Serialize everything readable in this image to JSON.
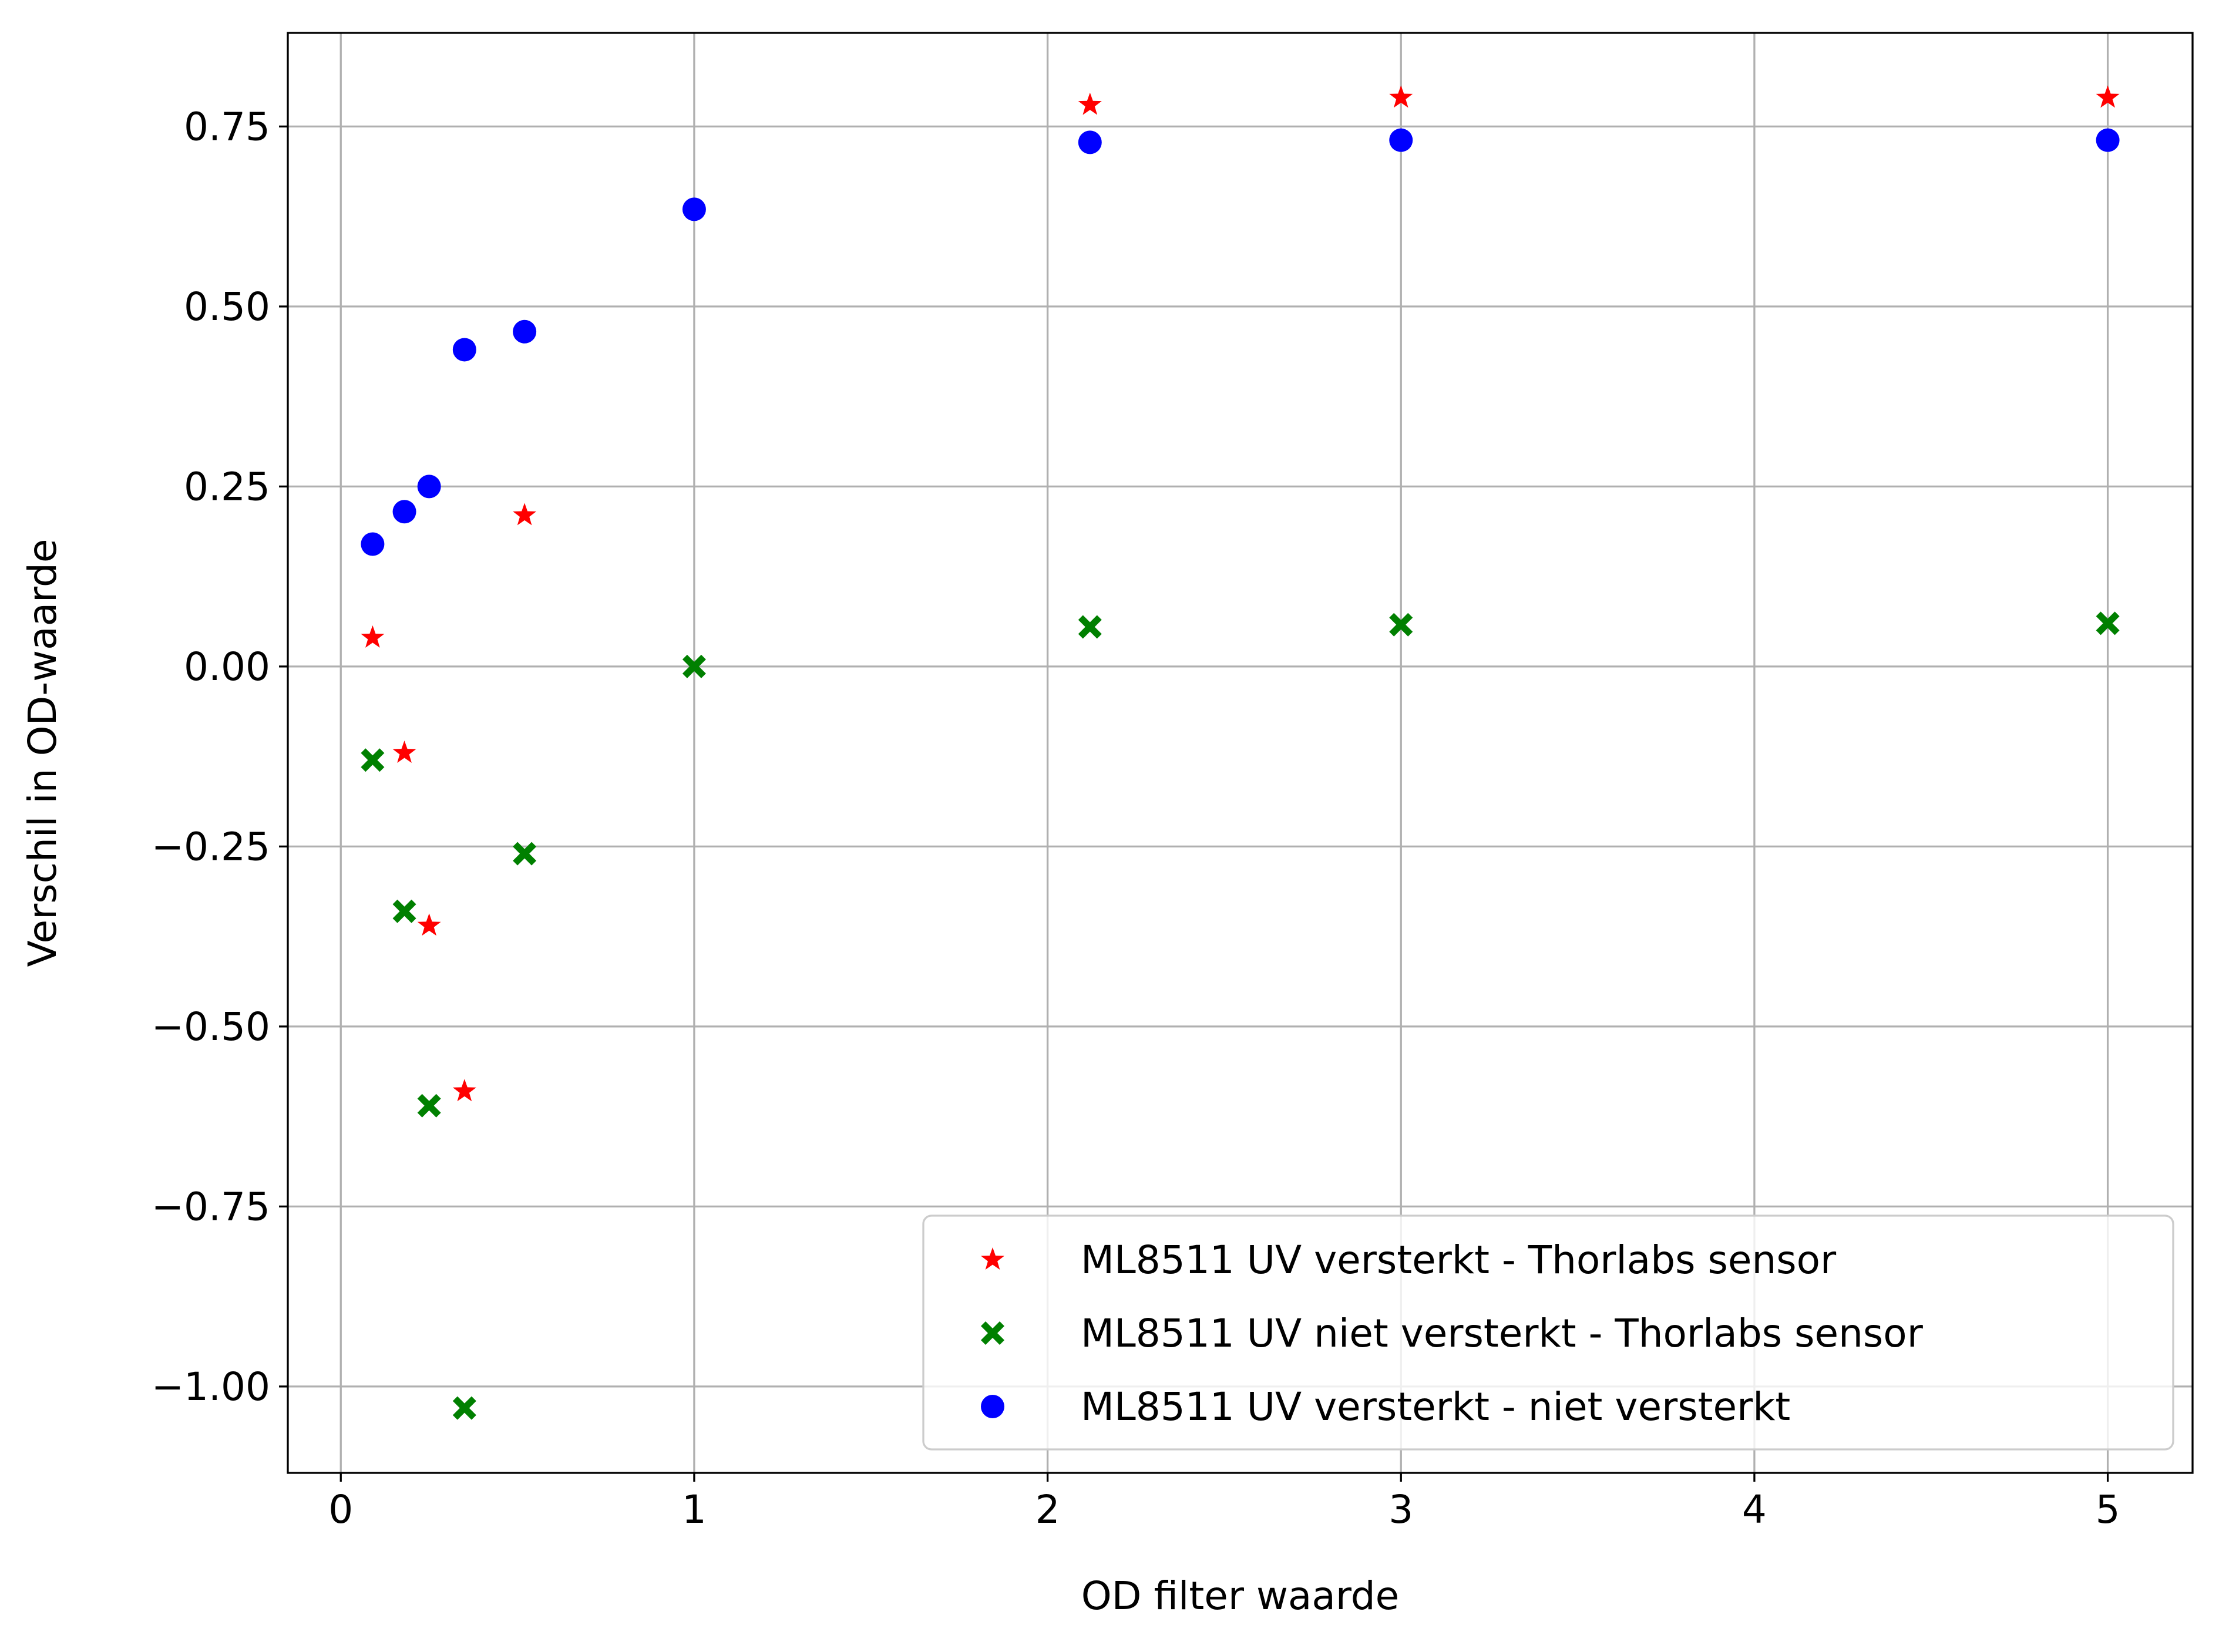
{
  "chart_data": {
    "type": "scatter",
    "title": "",
    "xlabel": "OD filter waarde",
    "ylabel": "Verschil in OD-waarde",
    "xlim": [
      -0.15,
      5.24
    ],
    "ylim": [
      -1.12,
      0.88
    ],
    "xticks": [
      0,
      1,
      2,
      3,
      4,
      5
    ],
    "xtick_labels": [
      "0",
      "1",
      "2",
      "3",
      "4",
      "5"
    ],
    "yticks": [
      0.75,
      0.5,
      0.25,
      0.0,
      -0.25,
      -0.5,
      -0.75,
      -1.0
    ],
    "ytick_labels": [
      "0.75",
      "0.50",
      "0.25",
      "0.00",
      "−0.25",
      "−0.50",
      "−0.75",
      "−1.00"
    ],
    "grid": true,
    "legend_position": "bottom-right",
    "series": [
      {
        "name": "ML8511 UV versterkt - Thorlabs sensor",
        "marker": "star",
        "color": "#ff0000",
        "x": [
          0.09,
          0.18,
          0.25,
          0.35,
          0.52,
          2.12,
          3.0,
          5.0
        ],
        "y": [
          0.04,
          -0.12,
          -0.36,
          -0.59,
          0.21,
          0.78,
          0.79,
          0.79
        ]
      },
      {
        "name": "ML8511 UV niet versterkt - Thorlabs sensor",
        "marker": "X",
        "color": "#008000",
        "x": [
          0.09,
          0.18,
          0.25,
          0.35,
          0.52,
          1.0,
          2.12,
          3.0,
          5.0
        ],
        "y": [
          -0.13,
          -0.34,
          -0.61,
          -1.03,
          -0.26,
          0.0,
          0.055,
          0.058,
          0.06
        ]
      },
      {
        "name": "ML8511 UV versterkt - niet versterkt",
        "marker": "circle",
        "color": "#0000ff",
        "x": [
          0.09,
          0.18,
          0.25,
          0.35,
          0.52,
          1.0,
          2.12,
          3.0,
          5.0
        ],
        "y": [
          0.17,
          0.215,
          0.25,
          0.44,
          0.465,
          0.635,
          0.728,
          0.731,
          0.731
        ]
      }
    ]
  }
}
